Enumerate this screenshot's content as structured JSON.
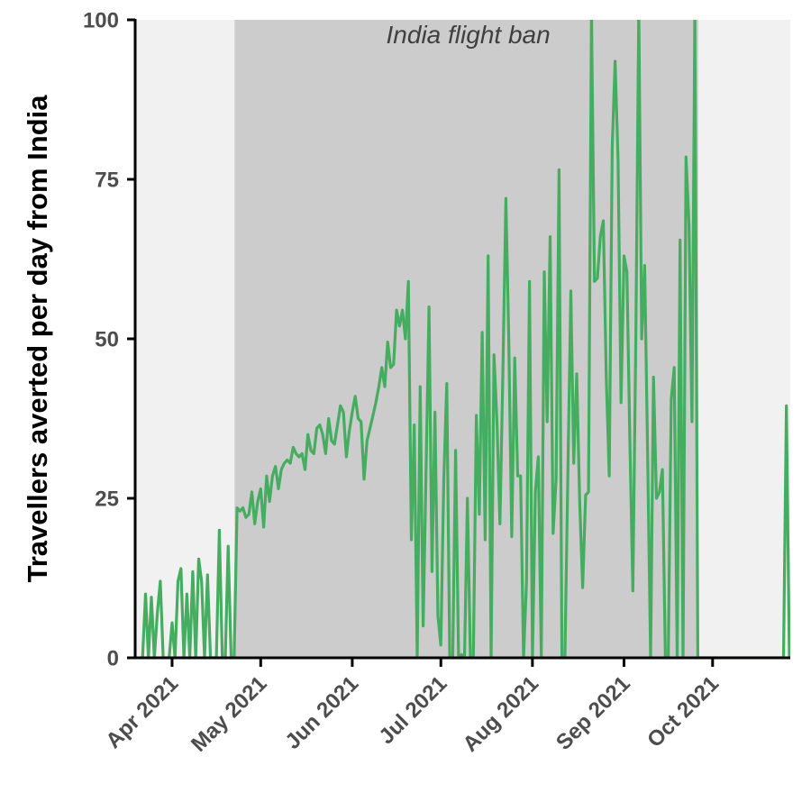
{
  "chart_data": {
    "type": "line",
    "title": "",
    "xlabel": "",
    "ylabel": "Travellers averted per day from India",
    "x_range": [
      "2021-03-22",
      "2021-10-27"
    ],
    "ylim": [
      0,
      100
    ],
    "y_ticks": [
      0,
      25,
      50,
      75,
      100
    ],
    "x_ticks": [
      {
        "date": "2021-04-01",
        "label": "Apr 2021"
      },
      {
        "date": "2021-05-01",
        "label": "May 2021"
      },
      {
        "date": "2021-06-01",
        "label": "Jun 2021"
      },
      {
        "date": "2021-07-01",
        "label": "Jul 2021"
      },
      {
        "date": "2021-08-01",
        "label": "Aug 2021"
      },
      {
        "date": "2021-09-01",
        "label": "Sep 2021"
      },
      {
        "date": "2021-10-01",
        "label": "Oct 2021"
      }
    ],
    "band": {
      "start": "2021-04-22",
      "end": "2021-09-26",
      "label": "India flight ban"
    },
    "grid": false,
    "colors": {
      "line": "#45ad5f",
      "band": "#cccccc",
      "panel": "#f1f1f1",
      "axis": "#000000"
    },
    "series": [
      {
        "points": [
          [
            "2021-03-22",
            0
          ],
          [
            "2021-03-23",
            10
          ],
          [
            "2021-03-24",
            0
          ],
          [
            "2021-03-25",
            9.5
          ],
          [
            "2021-03-26",
            0
          ],
          [
            "2021-03-27",
            7
          ],
          [
            "2021-03-28",
            12
          ],
          [
            "2021-03-29",
            0
          ],
          [
            "2021-03-30",
            0
          ],
          [
            "2021-03-31",
            0
          ],
          [
            "2021-04-01",
            5.5
          ],
          [
            "2021-04-02",
            0
          ],
          [
            "2021-04-03",
            12
          ],
          [
            "2021-04-04",
            14
          ],
          [
            "2021-04-05",
            0
          ],
          [
            "2021-04-06",
            10
          ],
          [
            "2021-04-07",
            0
          ],
          [
            "2021-04-08",
            13.5
          ],
          [
            "2021-04-09",
            0
          ],
          [
            "2021-04-10",
            15.5
          ],
          [
            "2021-04-11",
            12
          ],
          [
            "2021-04-12",
            0
          ],
          [
            "2021-04-13",
            13
          ],
          [
            "2021-04-14",
            0
          ],
          [
            "2021-04-15",
            0
          ],
          [
            "2021-04-16",
            0
          ],
          [
            "2021-04-17",
            20
          ],
          [
            "2021-04-18",
            0
          ],
          [
            "2021-04-19",
            0
          ],
          [
            "2021-04-20",
            17.5
          ],
          [
            "2021-04-21",
            0
          ],
          [
            "2021-04-22",
            0
          ],
          [
            "2021-04-23",
            23.5
          ],
          [
            "2021-04-24",
            23
          ],
          [
            "2021-04-25",
            23.5
          ],
          [
            "2021-04-26",
            22
          ],
          [
            "2021-04-27",
            22.5
          ],
          [
            "2021-04-28",
            26
          ],
          [
            "2021-04-29",
            21
          ],
          [
            "2021-04-30",
            24.5
          ],
          [
            "2021-05-01",
            26.5
          ],
          [
            "2021-05-02",
            20.5
          ],
          [
            "2021-05-03",
            28.5
          ],
          [
            "2021-05-04",
            24.5
          ],
          [
            "2021-05-05",
            28.5
          ],
          [
            "2021-05-06",
            30
          ],
          [
            "2021-05-07",
            26.5
          ],
          [
            "2021-05-08",
            29.5
          ],
          [
            "2021-05-09",
            30.5
          ],
          [
            "2021-05-10",
            31
          ],
          [
            "2021-05-11",
            30.5
          ],
          [
            "2021-05-12",
            33
          ],
          [
            "2021-05-13",
            32
          ],
          [
            "2021-05-14",
            31.5
          ],
          [
            "2021-05-15",
            32
          ],
          [
            "2021-05-16",
            29.5
          ],
          [
            "2021-05-17",
            35
          ],
          [
            "2021-05-18",
            32.5
          ],
          [
            "2021-05-19",
            32
          ],
          [
            "2021-05-20",
            36
          ],
          [
            "2021-05-21",
            36.5
          ],
          [
            "2021-05-22",
            35
          ],
          [
            "2021-05-23",
            32
          ],
          [
            "2021-05-24",
            37.5
          ],
          [
            "2021-05-25",
            34
          ],
          [
            "2021-05-26",
            33.5
          ],
          [
            "2021-05-27",
            36.5
          ],
          [
            "2021-05-28",
            39.5
          ],
          [
            "2021-05-29",
            38.5
          ],
          [
            "2021-05-30",
            31.5
          ],
          [
            "2021-05-31",
            35.5
          ],
          [
            "2021-06-01",
            38.5
          ],
          [
            "2021-06-02",
            41
          ],
          [
            "2021-06-03",
            37.5
          ],
          [
            "2021-06-04",
            37
          ],
          [
            "2021-06-05",
            28
          ],
          [
            "2021-06-06",
            34
          ],
          [
            "2021-06-07",
            36
          ],
          [
            "2021-06-08",
            38
          ],
          [
            "2021-06-09",
            40
          ],
          [
            "2021-06-10",
            42.5
          ],
          [
            "2021-06-11",
            45.5
          ],
          [
            "2021-06-12",
            42.5
          ],
          [
            "2021-06-13",
            49.5
          ],
          [
            "2021-06-14",
            45.5
          ],
          [
            "2021-06-15",
            46
          ],
          [
            "2021-06-16",
            54.5
          ],
          [
            "2021-06-17",
            52
          ],
          [
            "2021-06-18",
            54.5
          ],
          [
            "2021-06-19",
            50
          ],
          [
            "2021-06-20",
            59
          ],
          [
            "2021-06-21",
            18.5
          ],
          [
            "2021-06-22",
            36.5
          ],
          [
            "2021-06-23",
            0
          ],
          [
            "2021-06-24",
            42.5
          ],
          [
            "2021-06-25",
            5
          ],
          [
            "2021-06-26",
            30
          ],
          [
            "2021-06-27",
            55
          ],
          [
            "2021-06-28",
            13.5
          ],
          [
            "2021-06-29",
            38.5
          ],
          [
            "2021-06-30",
            6.5
          ],
          [
            "2021-07-01",
            2
          ],
          [
            "2021-07-02",
            28
          ],
          [
            "2021-07-03",
            43
          ],
          [
            "2021-07-04",
            0
          ],
          [
            "2021-07-05",
            0
          ],
          [
            "2021-07-06",
            32.5
          ],
          [
            "2021-07-07",
            0
          ],
          [
            "2021-07-08",
            0.5
          ],
          [
            "2021-07-09",
            0
          ],
          [
            "2021-07-10",
            25
          ],
          [
            "2021-07-11",
            0
          ],
          [
            "2021-07-12",
            0
          ],
          [
            "2021-07-13",
            38
          ],
          [
            "2021-07-14",
            22.5
          ],
          [
            "2021-07-15",
            51
          ],
          [
            "2021-07-16",
            18.5
          ],
          [
            "2021-07-17",
            63
          ],
          [
            "2021-07-18",
            0
          ],
          [
            "2021-07-19",
            47.5
          ],
          [
            "2021-07-20",
            37
          ],
          [
            "2021-07-21",
            21
          ],
          [
            "2021-07-22",
            45
          ],
          [
            "2021-07-23",
            72
          ],
          [
            "2021-07-24",
            50
          ],
          [
            "2021-07-25",
            19
          ],
          [
            "2021-07-26",
            47
          ],
          [
            "2021-07-27",
            28.5
          ],
          [
            "2021-07-28",
            28.5
          ],
          [
            "2021-07-29",
            0
          ],
          [
            "2021-07-30",
            12
          ],
          [
            "2021-07-31",
            59
          ],
          [
            "2021-08-01",
            0
          ],
          [
            "2021-08-02",
            26
          ],
          [
            "2021-08-03",
            31.5
          ],
          [
            "2021-08-04",
            0
          ],
          [
            "2021-08-05",
            60.5
          ],
          [
            "2021-08-06",
            37
          ],
          [
            "2021-08-07",
            66
          ],
          [
            "2021-08-08",
            19.5
          ],
          [
            "2021-08-09",
            28
          ],
          [
            "2021-08-10",
            76.5
          ],
          [
            "2021-08-11",
            0
          ],
          [
            "2021-08-12",
            0
          ],
          [
            "2021-08-13",
            29
          ],
          [
            "2021-08-14",
            57.5
          ],
          [
            "2021-08-15",
            30.5
          ],
          [
            "2021-08-16",
            44.5
          ],
          [
            "2021-08-17",
            24.5
          ],
          [
            "2021-08-18",
            11
          ],
          [
            "2021-08-19",
            25.5
          ],
          [
            "2021-08-20",
            26
          ],
          [
            "2021-08-21",
            101
          ],
          [
            "2021-08-22",
            59
          ],
          [
            "2021-08-23",
            59.5
          ],
          [
            "2021-08-24",
            66
          ],
          [
            "2021-08-25",
            68.5
          ],
          [
            "2021-08-26",
            44
          ],
          [
            "2021-08-27",
            28.5
          ],
          [
            "2021-08-28",
            80
          ],
          [
            "2021-08-29",
            93.5
          ],
          [
            "2021-08-30",
            78
          ],
          [
            "2021-08-31",
            40
          ],
          [
            "2021-09-01",
            63
          ],
          [
            "2021-09-02",
            60.5
          ],
          [
            "2021-09-03",
            34
          ],
          [
            "2021-09-04",
            10.5
          ],
          [
            "2021-09-05",
            50
          ],
          [
            "2021-09-06",
            102
          ],
          [
            "2021-09-07",
            50
          ],
          [
            "2021-09-08",
            61.5
          ],
          [
            "2021-09-09",
            32
          ],
          [
            "2021-09-10",
            0
          ],
          [
            "2021-09-11",
            44
          ],
          [
            "2021-09-12",
            25
          ],
          [
            "2021-09-13",
            26
          ],
          [
            "2021-09-14",
            29.5
          ],
          [
            "2021-09-15",
            0
          ],
          [
            "2021-09-16",
            0
          ],
          [
            "2021-09-17",
            40.5
          ],
          [
            "2021-09-18",
            45.5
          ],
          [
            "2021-09-19",
            0
          ],
          [
            "2021-09-20",
            65.5
          ],
          [
            "2021-09-21",
            0
          ],
          [
            "2021-09-22",
            78.5
          ],
          [
            "2021-09-23",
            68
          ],
          [
            "2021-09-24",
            37
          ],
          [
            "2021-09-25",
            101
          ],
          [
            "2021-09-26",
            0
          ],
          [
            "2021-09-27",
            0
          ],
          [
            "2021-10-25",
            0
          ],
          [
            "2021-10-26",
            39.5
          ],
          [
            "2021-10-27",
            0
          ]
        ]
      }
    ]
  }
}
